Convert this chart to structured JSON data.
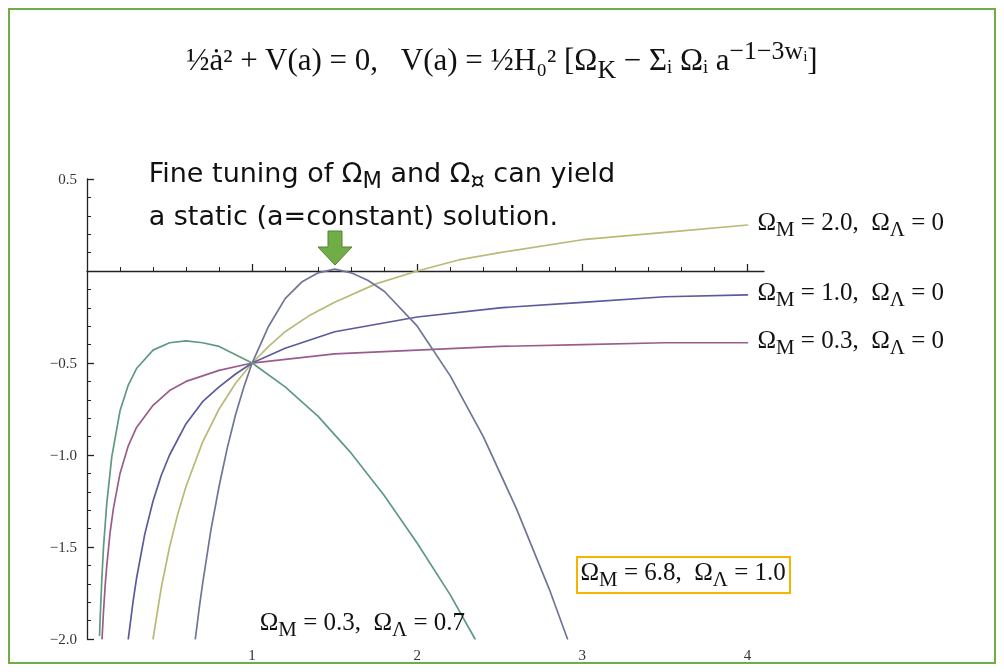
{
  "chart_data": {
    "type": "line",
    "title": "½ȧ² + V(a) = 0,   V(a) = ½H₀² [Ω$_{K}$ − Σᵢ Ωᵢ a$^{−1−3wᵢ}$]",
    "annotations": [
      {
        "text": "Fine tuning of Ω$_{M}$ and Ω$_{¤}$ can yield\na static (a=constant) solution.",
        "x": 1.5,
        "y": 0
      }
    ],
    "xlim": [
      0,
      4.1
    ],
    "xticks": [
      1,
      2,
      3,
      4
    ],
    "ylim": [
      -2,
      0.5
    ],
    "yticks": [
      {
        "value": -2,
        "label": "−2.0"
      },
      {
        "value": -1.5,
        "label": "−1.5"
      },
      {
        "value": -1,
        "label": "−1.0"
      },
      {
        "value": -0.5,
        "label": "−0.5"
      },
      0.5
    ],
    "series": [
      {
        "name": "Ω$_{M}$ = 2.0,  Ω$_{Λ}$ = 0",
        "color": "#b9b978",
        "x": [
          0.4,
          0.45,
          0.5,
          0.55,
          0.6,
          0.7,
          0.8,
          0.9,
          1.0,
          1.1,
          1.2,
          1.35,
          1.5,
          1.75,
          2.0,
          2.25,
          2.5,
          3.0,
          3.5,
          4.0
        ],
        "values": [
          -2.0,
          -1.72,
          -1.5,
          -1.32,
          -1.17,
          -0.93,
          -0.75,
          -0.61,
          -0.5,
          -0.41,
          -0.33,
          -0.24,
          -0.17,
          -0.07,
          0,
          0.06,
          0.1,
          0.17,
          0.21,
          0.25
        ]
      },
      {
        "name": "Ω$_{M}$ = 1.0,  Ω$_{Λ}$ = 0",
        "color": "#5b5a9c",
        "x": [
          0.25,
          0.28,
          0.3,
          0.35,
          0.4,
          0.45,
          0.5,
          0.6,
          0.7,
          0.8,
          0.9,
          1.0,
          1.2,
          1.5,
          2.0,
          2.5,
          3.0,
          3.5,
          4.0
        ],
        "values": [
          -2.0,
          -1.79,
          -1.67,
          -1.43,
          -1.25,
          -1.11,
          -1.0,
          -0.83,
          -0.71,
          -0.63,
          -0.56,
          -0.5,
          -0.42,
          -0.33,
          -0.25,
          -0.2,
          -0.17,
          -0.14,
          -0.13
        ]
      },
      {
        "name": "Ω$_{M}$ = 0.3,  Ω$_{Λ}$ = 0",
        "color": "#9a5c8c",
        "x": [
          0.091,
          0.1,
          0.11,
          0.12,
          0.14,
          0.16,
          0.2,
          0.25,
          0.3,
          0.4,
          0.5,
          0.6,
          0.8,
          1.0,
          1.5,
          2.0,
          2.5,
          3.0,
          3.5,
          4.0
        ],
        "values": [
          -2.0,
          -1.85,
          -1.71,
          -1.6,
          -1.42,
          -1.29,
          -1.1,
          -0.95,
          -0.85,
          -0.73,
          -0.65,
          -0.6,
          -0.54,
          -0.5,
          -0.45,
          -0.43,
          -0.41,
          -0.4,
          -0.39,
          -0.39
        ]
      },
      {
        "name": "Ω$_{M}$ = 6.8,  Ω$_{Λ}$ = 1.0",
        "color": "#6f7596",
        "x": [
          0.656,
          0.68,
          0.7,
          0.75,
          0.8,
          0.85,
          0.9,
          0.95,
          1.0,
          1.1,
          1.2,
          1.3,
          1.4,
          1.5,
          1.6,
          1.7,
          1.8,
          2.0,
          2.2,
          2.4,
          2.6,
          2.8,
          2.91
        ],
        "values": [
          -2.0,
          -1.83,
          -1.7,
          -1.41,
          -1.17,
          -0.96,
          -0.78,
          -0.63,
          -0.5,
          -0.3,
          -0.15,
          -0.06,
          -0.01,
          0.01,
          -0.01,
          -0.05,
          -0.11,
          -0.3,
          -0.57,
          -0.9,
          -1.29,
          -1.73,
          -2.0
        ]
      },
      {
        "name": "Ω$_{M}$ = 0.3,  Ω$_{Λ}$ = 0.7",
        "color": "#5e9a80",
        "x": [
          0.076,
          0.08,
          0.09,
          0.1,
          0.12,
          0.15,
          0.2,
          0.25,
          0.3,
          0.4,
          0.5,
          0.6,
          0.7,
          0.8,
          1.0,
          1.2,
          1.4,
          1.6,
          1.8,
          2.0,
          2.2,
          2.35
        ],
        "values": [
          -1.98,
          -1.88,
          -1.67,
          -1.5,
          -1.26,
          -1.01,
          -0.76,
          -0.62,
          -0.53,
          -0.43,
          -0.39,
          -0.38,
          -0.39,
          -0.41,
          -0.5,
          -0.63,
          -0.79,
          -0.99,
          -1.22,
          -1.48,
          -1.76,
          -2.0
        ]
      }
    ]
  }
}
